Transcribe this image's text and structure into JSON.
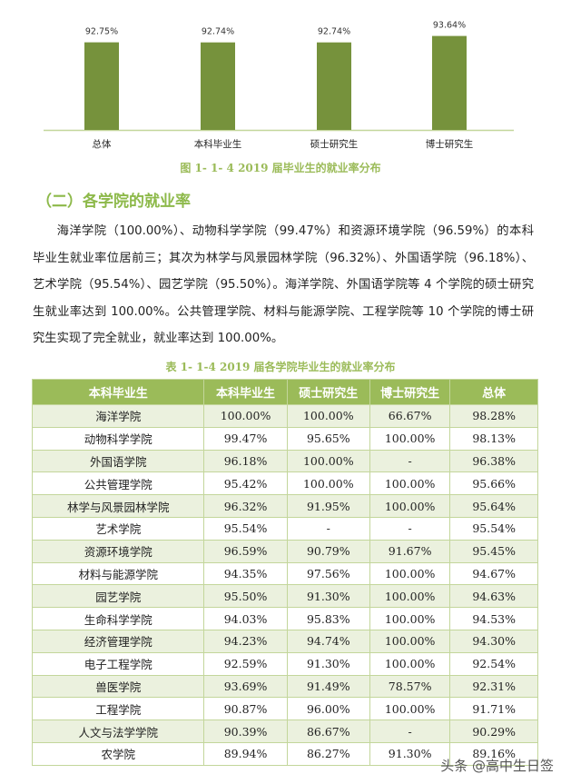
{
  "chart_data": {
    "type": "bar",
    "categories": [
      "总体",
      "本科毕业生",
      "硕士研究生",
      "博士研究生"
    ],
    "values": [
      92.75,
      92.74,
      92.74,
      93.64
    ],
    "value_labels": [
      "92.75%",
      "92.74%",
      "92.74%",
      "93.64%"
    ],
    "title": "图 1- 1- 4    2019 届毕业生的就业率分布",
    "ylim": [
      80.5,
      95
    ],
    "grid": false,
    "bar_color": "#76923c",
    "axis_color": "#c3d69b"
  },
  "section": {
    "heading": "（二）各学院的就业率",
    "paragraph": "海洋学院（100.00%）、动物科学学院（99.47%）和资源环境学院（96.59%）的本科毕业生就业率位居前三；其次为林学与风景园林学院（96.32%）、外国语学院（96.18%）、艺术学院（95.54%）、园艺学院（95.50%）。海洋学院、外国语学院等 4 个学院的硕士研究生就业率达到 100.00%。公共管理学院、材料与能源学院、工程学院等 10 个学院的博士研究生实现了完全就业，就业率达到 100.00%。"
  },
  "table": {
    "caption": "表 1- 1-4    2019 届各学院毕业生的就业率分布",
    "headers": [
      "本科毕业生",
      "本科毕业生",
      "硕士研究生",
      "博士研究生",
      "总体"
    ],
    "rows": [
      [
        "海洋学院",
        "100.00%",
        "100.00%",
        "66.67%",
        "98.28%"
      ],
      [
        "动物科学学院",
        "99.47%",
        "95.65%",
        "100.00%",
        "98.13%"
      ],
      [
        "外国语学院",
        "96.18%",
        "100.00%",
        "-",
        "96.38%"
      ],
      [
        "公共管理学院",
        "95.42%",
        "100.00%",
        "100.00%",
        "95.66%"
      ],
      [
        "林学与风景园林学院",
        "96.32%",
        "91.95%",
        "100.00%",
        "95.64%"
      ],
      [
        "艺术学院",
        "95.54%",
        "-",
        "-",
        "95.54%"
      ],
      [
        "资源环境学院",
        "96.59%",
        "90.79%",
        "91.67%",
        "95.45%"
      ],
      [
        "材料与能源学院",
        "94.35%",
        "97.56%",
        "100.00%",
        "94.67%"
      ],
      [
        "园艺学院",
        "95.50%",
        "91.30%",
        "100.00%",
        "94.63%"
      ],
      [
        "生命科学学院",
        "94.03%",
        "95.83%",
        "100.00%",
        "94.53%"
      ],
      [
        "经济管理学院",
        "94.23%",
        "94.74%",
        "100.00%",
        "94.30%"
      ],
      [
        "电子工程学院",
        "92.59%",
        "91.30%",
        "100.00%",
        "92.54%"
      ],
      [
        "兽医学院",
        "93.69%",
        "91.49%",
        "78.57%",
        "92.31%"
      ],
      [
        "工程学院",
        "90.87%",
        "96.00%",
        "100.00%",
        "91.71%"
      ],
      [
        "人文与法学学院",
        "90.39%",
        "86.67%",
        "-",
        "90.29%"
      ],
      [
        "农学院",
        "89.94%",
        "86.27%",
        "91.30%",
        "89.16%"
      ]
    ]
  },
  "watermark": "头条 @高中生日签",
  "colors": {
    "header_bg": "#9bbb59",
    "alt_row": "#ebf1de",
    "accent": "#8db94a"
  }
}
